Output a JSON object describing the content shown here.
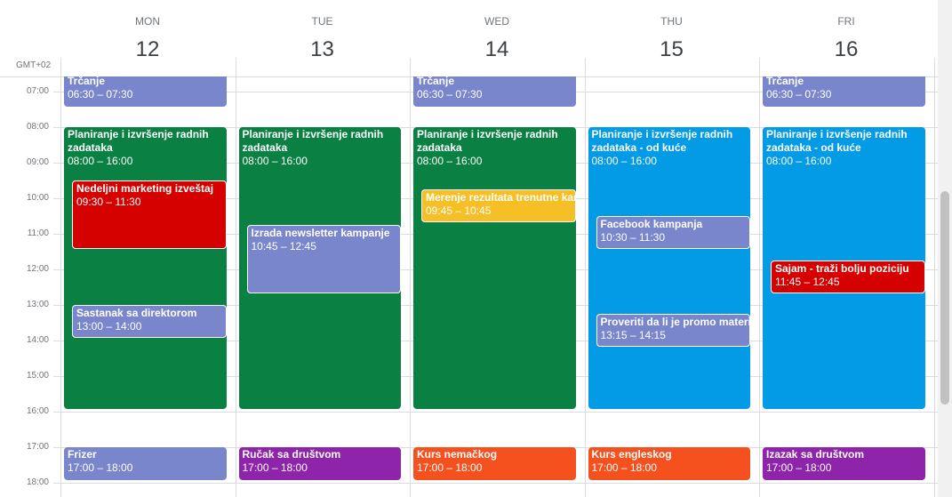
{
  "timezone": "GMT+02",
  "hours": [
    "07:00",
    "08:00",
    "09:00",
    "10:00",
    "11:00",
    "12:00",
    "13:00",
    "14:00",
    "15:00",
    "16:00",
    "17:00",
    "18:00"
  ],
  "days": [
    {
      "name": "MON",
      "date": "12",
      "events": [
        {
          "title": "Trčanje",
          "time": "06:30 – 07:30",
          "color": "#7986cb"
        },
        {
          "title": "Planiranje i izvršenje radnih zadataka",
          "time": "08:00 – 16:00",
          "color": "#0b8043"
        },
        {
          "title": "Nedeljni marketing izveštaj",
          "time": "09:30 – 11:30",
          "color": "#d50000"
        },
        {
          "title": "Sastanak sa direktorom",
          "time": "13:00 – 14:00",
          "color": "#7986cb"
        },
        {
          "title": "Frizer",
          "time": "17:00 – 18:00",
          "color": "#7986cb"
        }
      ]
    },
    {
      "name": "TUE",
      "date": "13",
      "events": [
        {
          "title": "Planiranje i izvršenje radnih zadataka",
          "time": "08:00 – 16:00",
          "color": "#0b8043"
        },
        {
          "title": "Izrada newsletter kampanje",
          "time": "10:45 – 12:45",
          "color": "#7986cb"
        },
        {
          "title": "Ručak sa društvom",
          "time": "17:00 – 18:00",
          "color": "#8e24aa"
        }
      ]
    },
    {
      "name": "WED",
      "date": "14",
      "events": [
        {
          "title": "Trčanje",
          "time": "06:30 – 07:30",
          "color": "#7986cb"
        },
        {
          "title": "Planiranje i izvršenje radnih zadataka",
          "time": "08:00 – 16:00",
          "color": "#0b8043"
        },
        {
          "title": "Merenje rezultata trenutne kam",
          "time": "09:45 – 10:45",
          "color": "#f6bf26"
        },
        {
          "title": "Kurs nemačkog",
          "time": "17:00 – 18:00",
          "color": "#f4511e"
        }
      ]
    },
    {
      "name": "THU",
      "date": "15",
      "events": [
        {
          "title": "Planiranje i izvršenje radnih zadataka - od kuće",
          "time": "08:00 – 16:00",
          "color": "#039be5"
        },
        {
          "title": "Facebook kampanja",
          "time": "10:30 – 11:30",
          "color": "#7986cb"
        },
        {
          "title": "Proveriti da li je promo materija",
          "time": "13:15 – 14:15",
          "color": "#7986cb"
        },
        {
          "title": "Kurs engleskog",
          "time": "17:00 – 18:00",
          "color": "#f4511e"
        }
      ]
    },
    {
      "name": "FRI",
      "date": "16",
      "events": [
        {
          "title": "Trčanje",
          "time": "06:30 – 07:30",
          "color": "#7986cb"
        },
        {
          "title": "Planiranje i izvršenje radnih zadataka - od kuće",
          "time": "08:00 – 16:00",
          "color": "#039be5"
        },
        {
          "title": "Sajam - traži bolju poziciju",
          "time": "11:45 – 12:45",
          "color": "#d50000"
        },
        {
          "title": "Izazak sa društvom",
          "time": "17:00 – 18:00",
          "color": "#8e24aa"
        }
      ]
    }
  ]
}
